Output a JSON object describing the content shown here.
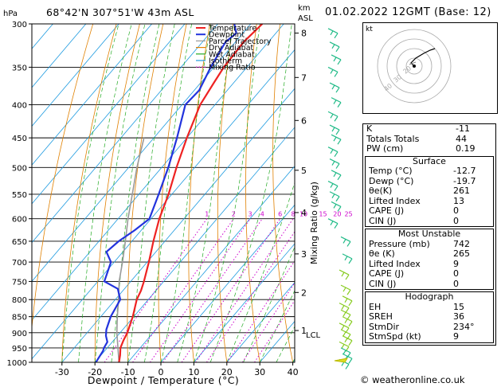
{
  "header": {
    "pressure_unit": "hPa",
    "location": "68°42'N  307°51'W  43m  ASL",
    "km_unit": "km",
    "asl_unit": "ASL",
    "date": "01.02.2022  12GMT  (Base: 12)"
  },
  "chart_data": {
    "type": "line",
    "chart_kind": "skew-T log-P diagram",
    "xlabel": "Dewpoint / Temperature (°C)",
    "ylabel": "",
    "secondary_ylabel": "Mixing Ratio (g/kg)",
    "x_ticks": [
      -30,
      -20,
      -10,
      0,
      10,
      20,
      30,
      40
    ],
    "pressure_levels": [
      300,
      350,
      400,
      450,
      500,
      550,
      600,
      650,
      700,
      750,
      800,
      850,
      900,
      950,
      1000
    ],
    "km_ticks": [
      {
        "km": 8,
        "p": 310
      },
      {
        "km": 7,
        "p": 363
      },
      {
        "km": 6,
        "p": 423
      },
      {
        "km": 5,
        "p": 505
      },
      {
        "km": 4,
        "p": 587
      },
      {
        "km": 3,
        "p": 680
      },
      {
        "km": 2,
        "p": 780
      },
      {
        "km": 1,
        "p": 893
      }
    ],
    "lcl_label": "LCL",
    "lcl_p": 905,
    "mixing_ratio_labels": [
      1,
      2,
      3,
      4,
      6,
      8,
      10,
      15,
      20,
      25
    ],
    "legend_position": "top-right inside plot",
    "series": [
      {
        "name": "Temperature",
        "color": "#ee2222",
        "points": [
          [
            1000,
            -12.7
          ],
          [
            975,
            -14.2
          ],
          [
            950,
            -16
          ],
          [
            925,
            -17
          ],
          [
            900,
            -17.8
          ],
          [
            850,
            -20.3
          ],
          [
            800,
            -23.5
          ],
          [
            775,
            -24.5
          ],
          [
            750,
            -26
          ],
          [
            700,
            -29.5
          ],
          [
            650,
            -33.5
          ],
          [
            600,
            -37.5
          ],
          [
            550,
            -41
          ],
          [
            500,
            -45.5
          ],
          [
            450,
            -50
          ],
          [
            400,
            -54.5
          ],
          [
            370,
            -56
          ],
          [
            350,
            -57
          ],
          [
            320,
            -57.5
          ],
          [
            300,
            -56.5
          ]
        ]
      },
      {
        "name": "Dewpoint",
        "color": "#2233dd",
        "points": [
          [
            1000,
            -19.7
          ],
          [
            960,
            -20.5
          ],
          [
            950,
            -21
          ],
          [
            930,
            -21.5
          ],
          [
            910,
            -23.5
          ],
          [
            890,
            -25
          ],
          [
            850,
            -27
          ],
          [
            800,
            -28.5
          ],
          [
            770,
            -32
          ],
          [
            750,
            -38
          ],
          [
            700,
            -41
          ],
          [
            675,
            -45
          ],
          [
            650,
            -44
          ],
          [
            625,
            -42
          ],
          [
            600,
            -40.5
          ],
          [
            550,
            -44
          ],
          [
            500,
            -48
          ],
          [
            450,
            -53
          ],
          [
            400,
            -59
          ],
          [
            380,
            -58.5
          ],
          [
            350,
            -61
          ],
          [
            320,
            -63
          ],
          [
            310,
            -62
          ],
          [
            300,
            -65
          ]
        ]
      },
      {
        "name": "Parcel Trajectory",
        "color": "#999999",
        "dash": "",
        "points": [
          [
            1000,
            -12.7
          ],
          [
            900,
            -21
          ],
          [
            850,
            -25
          ],
          [
            800,
            -29
          ],
          [
            750,
            -33.5
          ],
          [
            700,
            -37.5
          ],
          [
            650,
            -42
          ],
          [
            600,
            -47
          ],
          [
            550,
            -52
          ],
          [
            500,
            -57.5
          ],
          [
            450,
            -63
          ]
        ]
      },
      {
        "name": "Dry Adiabat",
        "color": "#e08000"
      },
      {
        "name": "Wet Adiabat",
        "color": "#22aa22"
      },
      {
        "name": "Isotherm",
        "color": "#1e9be0"
      },
      {
        "name": "Mixing Ratio",
        "color": "#cc00cc",
        "dash": "dotted"
      }
    ]
  },
  "wind_barbs_label": "wind profile",
  "hodograph": {
    "label": "kt",
    "ring_labels": [
      "40",
      "30",
      "20"
    ]
  },
  "indices": {
    "rows": [
      {
        "label": "K",
        "value": "-11"
      },
      {
        "label": "Totals Totals",
        "value": "44"
      },
      {
        "label": "PW (cm)",
        "value": "0.19"
      }
    ]
  },
  "surface": {
    "title": "Surface",
    "rows": [
      {
        "label": "Temp (°C)",
        "value": "-12.7"
      },
      {
        "label": "Dewp (°C)",
        "value": "-19.7"
      },
      {
        "label": "θe(K)",
        "value": "261"
      },
      {
        "label": "Lifted Index",
        "value": "13"
      },
      {
        "label": "CAPE (J)",
        "value": "0"
      },
      {
        "label": "CIN (J)",
        "value": "0"
      }
    ]
  },
  "most_unstable": {
    "title": "Most Unstable",
    "rows": [
      {
        "label": "Pressure (mb)",
        "value": "742"
      },
      {
        "label": "θe (K)",
        "value": "265"
      },
      {
        "label": "Lifted Index",
        "value": "9"
      },
      {
        "label": "CAPE (J)",
        "value": "0"
      },
      {
        "label": "CIN (J)",
        "value": "0"
      }
    ]
  },
  "hodograph_table": {
    "title": "Hodograph",
    "rows": [
      {
        "label": "EH",
        "value": "15"
      },
      {
        "label": "SREH",
        "value": "36"
      },
      {
        "label": "StmDir",
        "value": "234°"
      },
      {
        "label": "StmSpd (kt)",
        "value": "9"
      }
    ]
  },
  "footer": "© weatheronline.co.uk"
}
